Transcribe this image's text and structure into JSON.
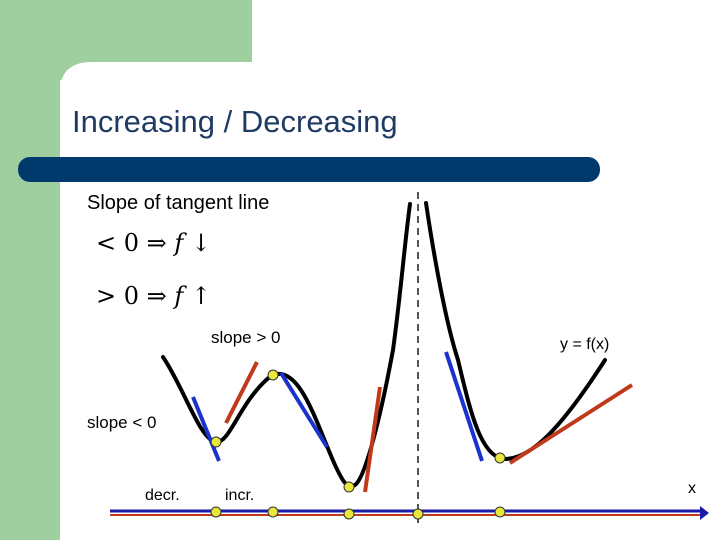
{
  "slide": {
    "title": "Increasing / Decreasing",
    "subtitle": "Slope of tangent line",
    "rules": [
      {
        "compare": "< 0",
        "implies": "⇒",
        "func": "f",
        "arrow": "↓"
      },
      {
        "compare": "> 0",
        "implies": "⇒",
        "func": "f",
        "arrow": "↑"
      }
    ]
  },
  "graph": {
    "curve_label": "y = f(x)",
    "slope_positive_label": "slope > 0",
    "slope_negative_label": "slope < 0",
    "decr_label": "decr.",
    "incr_label": "incr.",
    "x_axis_label": "x"
  },
  "colors": {
    "green_band": "#9fcf9f",
    "navy_bar": "#003a6c",
    "title": "#1f3b64",
    "curve": "#000000",
    "tangent_negative": "#1a33cc",
    "tangent_positive": "#c0391b",
    "axis_blue": "#1a1aa8",
    "axis_red": "#c0391b",
    "point_fill": "#e8e83a"
  }
}
